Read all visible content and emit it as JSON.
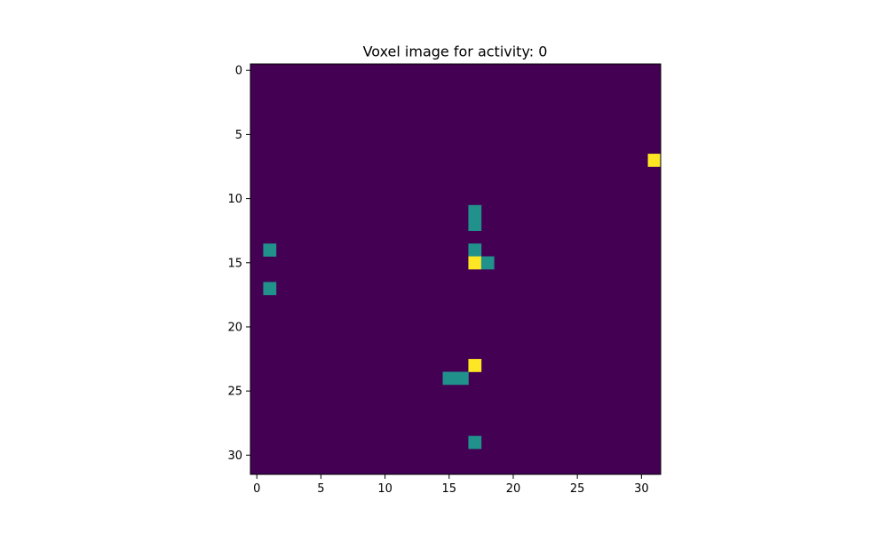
{
  "chart_data": {
    "type": "heatmap",
    "title": "Voxel image for activity: 0",
    "xlabel": "",
    "ylabel": "",
    "grid": false,
    "rows": 32,
    "cols": 32,
    "xlim": [
      -0.5,
      31.5
    ],
    "ylim": [
      31.5,
      -0.5
    ],
    "xticks": [
      0,
      5,
      10,
      15,
      20,
      25,
      30
    ],
    "yticks": [
      0,
      5,
      10,
      15,
      20,
      25,
      30
    ],
    "colormap": "viridis",
    "value_range": [
      0,
      2
    ],
    "background_value": 0,
    "colors": {
      "0": "#440154",
      "1": "#21918c",
      "2": "#fde725"
    },
    "cells": [
      {
        "row": 7,
        "col": 31,
        "value": 2
      },
      {
        "row": 11,
        "col": 17,
        "value": 1
      },
      {
        "row": 12,
        "col": 17,
        "value": 1
      },
      {
        "row": 14,
        "col": 1,
        "value": 1
      },
      {
        "row": 14,
        "col": 17,
        "value": 1
      },
      {
        "row": 15,
        "col": 17,
        "value": 2
      },
      {
        "row": 15,
        "col": 18,
        "value": 1
      },
      {
        "row": 17,
        "col": 1,
        "value": 1
      },
      {
        "row": 23,
        "col": 17,
        "value": 2
      },
      {
        "row": 24,
        "col": 15,
        "value": 1
      },
      {
        "row": 24,
        "col": 16,
        "value": 1
      },
      {
        "row": 29,
        "col": 17,
        "value": 1
      }
    ]
  }
}
